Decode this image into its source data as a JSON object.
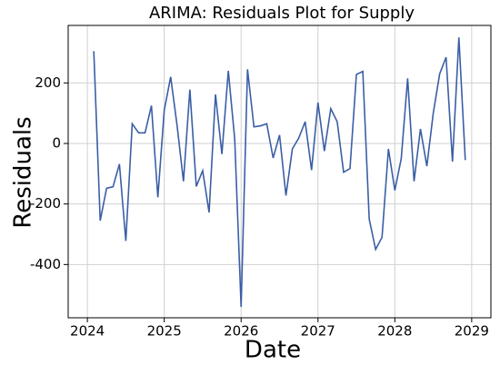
{
  "chart_data": {
    "type": "line",
    "title": "ARIMA: Residuals Plot for Supply",
    "xlabel": "Date",
    "ylabel": "Residuals",
    "x": [
      "2024-01",
      "2024-02",
      "2024-03",
      "2024-04",
      "2024-05",
      "2024-06",
      "2024-07",
      "2024-08",
      "2024-09",
      "2024-10",
      "2024-11",
      "2024-12",
      "2025-01",
      "2025-02",
      "2025-03",
      "2025-04",
      "2025-05",
      "2025-06",
      "2025-07",
      "2025-08",
      "2025-09",
      "2025-10",
      "2025-11",
      "2025-12",
      "2026-01",
      "2026-02",
      "2026-03",
      "2026-04",
      "2026-05",
      "2026-06",
      "2026-07",
      "2026-08",
      "2026-09",
      "2026-10",
      "2026-11",
      "2026-12",
      "2027-01",
      "2027-02",
      "2027-03",
      "2027-04",
      "2027-05",
      "2027-06",
      "2027-07",
      "2027-08",
      "2027-09",
      "2027-10",
      "2027-11",
      "2027-12",
      "2028-01",
      "2028-02",
      "2028-03",
      "2028-04",
      "2028-05",
      "2028-06",
      "2028-07",
      "2028-08",
      "2028-09",
      "2028-10",
      "2028-11"
    ],
    "series": [
      {
        "color": "#3b5ea6",
        "values": [
          305,
          -255,
          -148,
          -143,
          -68,
          -322,
          65,
          35,
          35,
          125,
          -178,
          110,
          220,
          60,
          -125,
          178,
          -142,
          -90,
          -228,
          162,
          -35,
          240,
          15,
          -540,
          245,
          55,
          58,
          65,
          -48,
          28,
          -172,
          -18,
          18,
          72,
          -88,
          135,
          -25,
          115,
          72,
          -95,
          -83,
          228,
          238,
          -250,
          -350,
          -310,
          -18,
          -155,
          -50,
          215,
          -125,
          48,
          -75,
          100,
          230,
          285,
          -60,
          350,
          -55
        ]
      }
    ],
    "xlim": [
      "2023-09",
      "2029-03"
    ],
    "xticks": [
      "2024",
      "2025",
      "2026",
      "2027",
      "2028",
      "2029"
    ],
    "ylim": [
      -576,
      390
    ],
    "yticks": [
      -400,
      -200,
      0,
      200
    ],
    "grid": true
  }
}
